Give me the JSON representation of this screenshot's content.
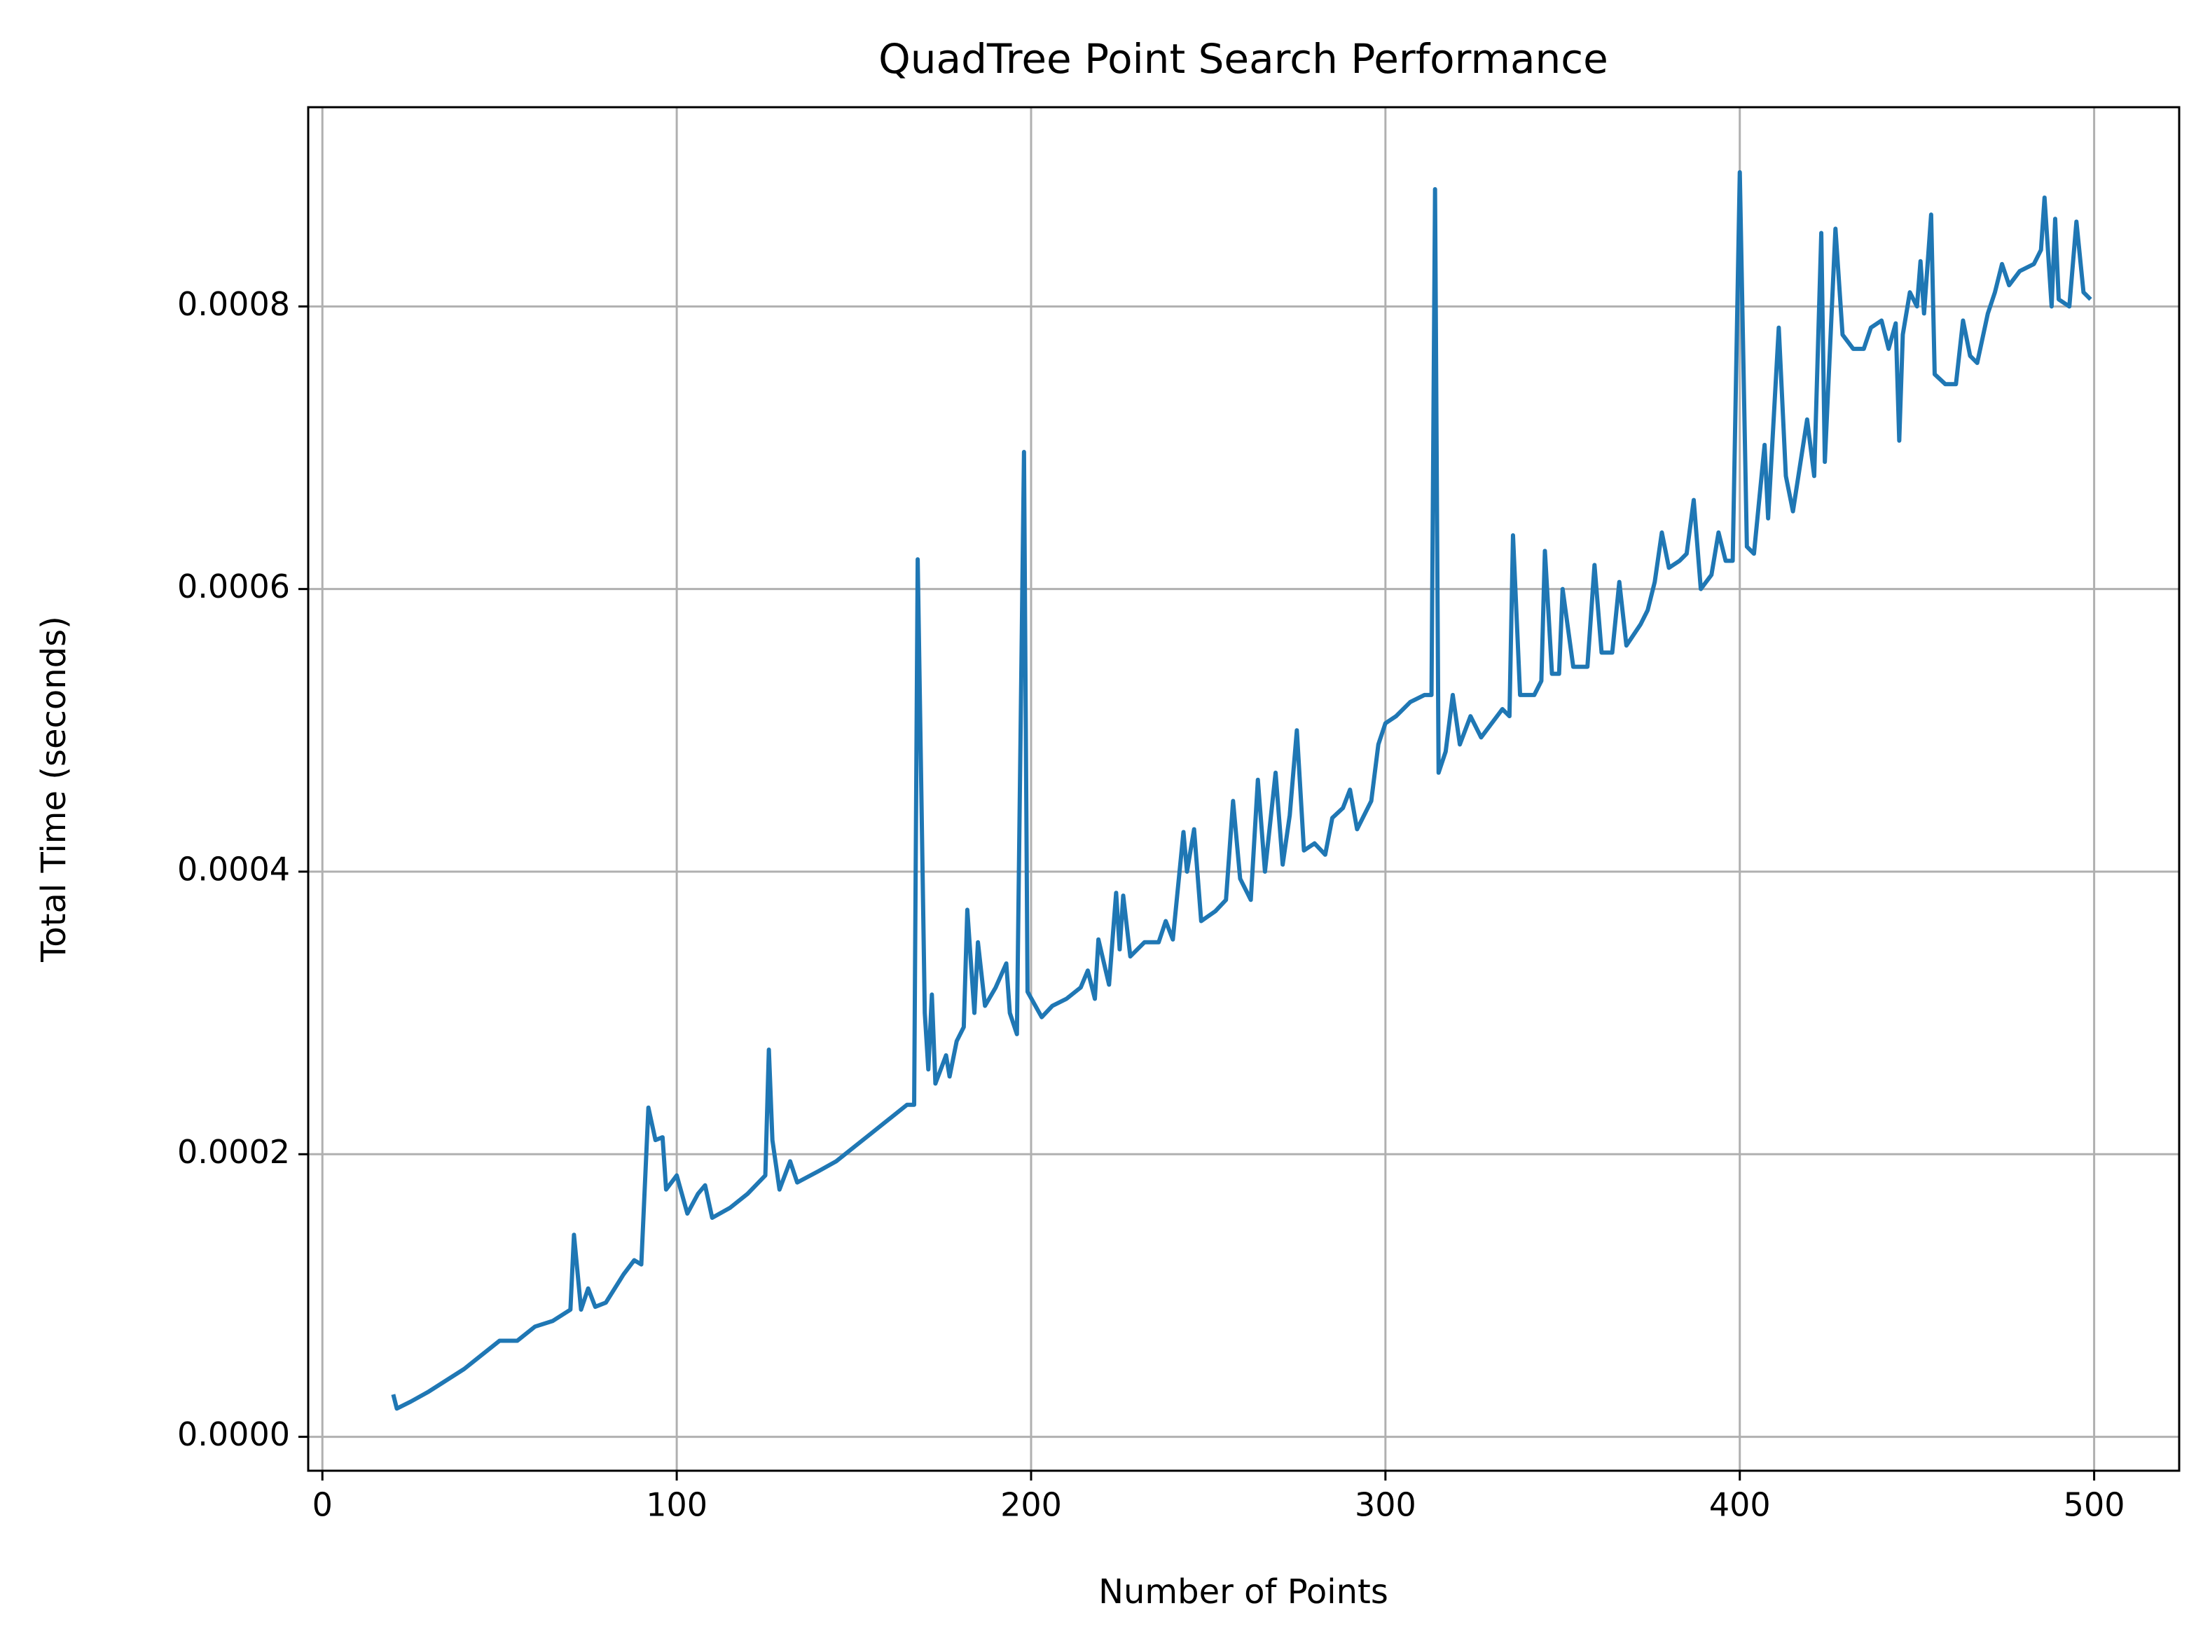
{
  "chart_data": {
    "type": "line",
    "title": "QuadTree Point Search Performance",
    "x_label": "Number of Points",
    "y_label": "Total Time (seconds)",
    "grid": true,
    "xlim": [
      -4,
      524
    ],
    "xticks": [
      0,
      100,
      200,
      300,
      400,
      500
    ],
    "ylim": [
      -2.4e-05,
      0.000941
    ],
    "yticks": [
      {
        "value": 0,
        "label": "0.0000"
      },
      0.0002,
      0.0004,
      0.0006,
      0.0008
    ],
    "x": [
      20,
      21,
      25,
      30,
      35,
      40,
      45,
      50,
      55,
      60,
      65,
      70,
      71,
      73,
      75,
      77,
      80,
      85,
      88,
      90,
      92,
      94,
      96,
      97,
      100,
      103,
      106,
      108,
      110,
      115,
      120,
      125,
      126,
      127,
      129,
      132,
      134,
      140,
      145,
      150,
      155,
      160,
      165,
      167,
      168,
      170,
      171,
      172,
      173,
      176,
      177,
      179,
      181,
      182,
      184,
      185,
      187,
      190,
      193,
      194,
      196,
      198,
      199,
      203,
      206,
      210,
      214,
      216,
      218,
      219,
      222,
      224,
      225,
      226,
      228,
      232,
      236,
      238,
      240,
      243,
      244,
      246,
      248,
      252,
      255,
      257,
      259,
      262,
      264,
      266,
      269,
      271,
      273,
      275,
      277,
      280,
      283,
      285,
      288,
      290,
      292,
      296,
      298,
      300,
      303,
      307,
      311,
      313,
      314,
      315,
      317,
      319,
      321,
      324,
      327,
      330,
      333,
      335,
      336,
      338,
      342,
      344,
      345,
      347,
      349,
      350,
      353,
      357,
      359,
      361,
      364,
      366,
      368,
      372,
      374,
      376,
      378,
      380,
      383,
      385,
      387,
      389,
      392,
      394,
      396,
      398,
      400,
      402,
      404,
      407,
      408,
      411,
      413,
      415,
      419,
      421,
      423,
      424,
      427,
      429,
      432,
      435,
      437,
      440,
      442,
      444,
      445,
      446,
      448,
      450,
      451,
      452,
      454,
      455,
      458,
      461,
      463,
      465,
      467,
      470,
      472,
      474,
      476,
      479,
      483,
      485,
      486,
      488,
      489,
      490,
      493,
      495,
      497,
      499
    ],
    "series": [
      {
        "name": "Total Time",
        "color": "#1f77b4",
        "values": [
          3e-05,
          2e-05,
          2.5e-05,
          3.2e-05,
          4e-05,
          4.8e-05,
          5.8e-05,
          6.8e-05,
          6.8e-05,
          7.8e-05,
          8.2e-05,
          9e-05,
          0.000143,
          9e-05,
          0.000105,
          9.2e-05,
          9.5e-05,
          0.000115,
          0.000125,
          0.000122,
          0.000233,
          0.00021,
          0.000212,
          0.000175,
          0.000185,
          0.000158,
          0.000172,
          0.000178,
          0.000155,
          0.000162,
          0.000172,
          0.000185,
          0.000274,
          0.00021,
          0.000175,
          0.000195,
          0.00018,
          0.000188,
          0.000195,
          0.000205,
          0.000215,
          0.000225,
          0.000235,
          0.000235,
          0.000621,
          0.0003,
          0.00026,
          0.000313,
          0.00025,
          0.00027,
          0.000255,
          0.00028,
          0.00029,
          0.000373,
          0.0003,
          0.00035,
          0.000305,
          0.000318,
          0.000335,
          0.0003,
          0.000285,
          0.000697,
          0.000315,
          0.000297,
          0.000305,
          0.00031,
          0.000318,
          0.00033,
          0.00031,
          0.000352,
          0.00032,
          0.000385,
          0.000345,
          0.000383,
          0.00034,
          0.00035,
          0.00035,
          0.000365,
          0.000352,
          0.000428,
          0.0004,
          0.00043,
          0.000365,
          0.000372,
          0.00038,
          0.00045,
          0.000395,
          0.00038,
          0.000465,
          0.0004,
          0.00047,
          0.000405,
          0.00044,
          0.0005,
          0.000415,
          0.00042,
          0.000412,
          0.000438,
          0.000445,
          0.000458,
          0.00043,
          0.00045,
          0.00049,
          0.000505,
          0.00051,
          0.00052,
          0.000525,
          0.000525,
          0.000883,
          0.00047,
          0.000485,
          0.000525,
          0.00049,
          0.00051,
          0.000495,
          0.000505,
          0.000515,
          0.00051,
          0.000638,
          0.000525,
          0.000525,
          0.000535,
          0.000627,
          0.00054,
          0.00054,
          0.0006,
          0.000545,
          0.000545,
          0.000617,
          0.000555,
          0.000555,
          0.000605,
          0.00056,
          0.000575,
          0.000585,
          0.000605,
          0.00064,
          0.000615,
          0.00062,
          0.000625,
          0.000663,
          0.0006,
          0.00061,
          0.00064,
          0.00062,
          0.00062,
          0.000895,
          0.00063,
          0.000625,
          0.000702,
          0.00065,
          0.000785,
          0.00068,
          0.000655,
          0.00072,
          0.00068,
          0.000852,
          0.00069,
          0.000855,
          0.00078,
          0.00077,
          0.00077,
          0.000785,
          0.00079,
          0.00077,
          0.000788,
          0.000705,
          0.00078,
          0.00081,
          0.0008,
          0.000832,
          0.000795,
          0.000865,
          0.000752,
          0.000745,
          0.000745,
          0.00079,
          0.000765,
          0.00076,
          0.000795,
          0.00081,
          0.00083,
          0.000815,
          0.000825,
          0.00083,
          0.00084,
          0.000877,
          0.0008,
          0.000862,
          0.000805,
          0.0008,
          0.00086,
          0.00081,
          0.000805
        ]
      }
    ]
  }
}
